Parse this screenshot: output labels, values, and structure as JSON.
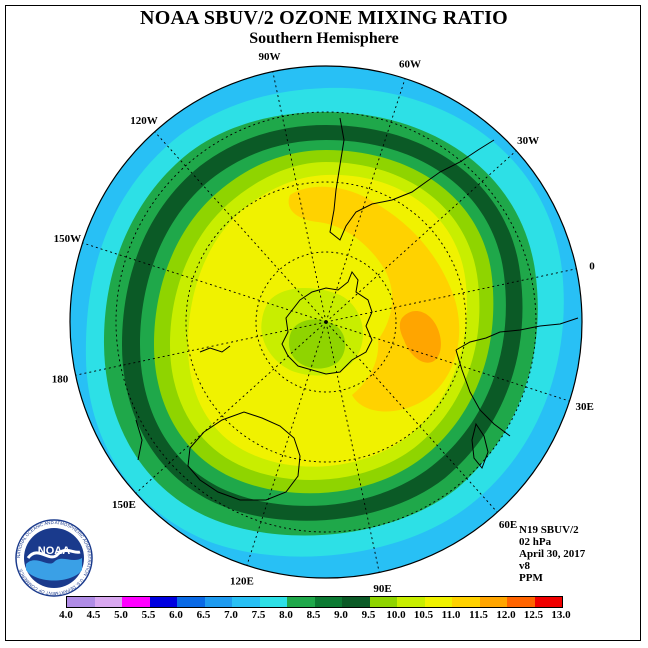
{
  "title": "NOAA SBUV/2 OZONE MIXING RATIO",
  "subtitle": "Southern Hemisphere",
  "logo": {
    "text": "NOAA",
    "ring_text": "NATIONAL OCEANIC AND ATMOSPHERIC ADMINISTRATION · U.S. DEPARTMENT OF COMMERCE"
  },
  "longitude_labels": [
    "90W",
    "60W",
    "30W",
    "0",
    "30E",
    "60E",
    "90E",
    "120E",
    "150E",
    "180",
    "150W",
    "120W"
  ],
  "info": {
    "satellite": "N19 SBUV/2",
    "pressure": "02 hPa",
    "date": "April 30, 2017",
    "version": "v8",
    "units": "PPM"
  },
  "colorbar": {
    "ticks": [
      "4.0",
      "4.5",
      "5.0",
      "5.5",
      "6.0",
      "6.5",
      "7.0",
      "7.5",
      "8.0",
      "8.5",
      "9.0",
      "9.5",
      "10.0",
      "10.5",
      "11.0",
      "11.5",
      "12.0",
      "12.5",
      "13.0"
    ],
    "colors": [
      "#b08ce6",
      "#d9a8f0",
      "#ff00ff",
      "#0000e0",
      "#0a6ae6",
      "#1e9bf0",
      "#28c0f5",
      "#2de0e6",
      "#1fa84a",
      "#0c7a32",
      "#0b5a26",
      "#8fd400",
      "#c8ee00",
      "#f0f200",
      "#ffd200",
      "#ffa500",
      "#ff6400",
      "#f00000",
      "#8b5a3c"
    ]
  },
  "map_fields": {
    "outer_ring": "#28c0f5",
    "bands": [
      "#2de0e6",
      "#1fa84a",
      "#0b5a26",
      "#1fa84a",
      "#8fd400",
      "#c8ee00",
      "#f0f200"
    ],
    "high_region": "#ffd200",
    "peak_region": "#ffa500",
    "pole_region": "#8fd400"
  }
}
